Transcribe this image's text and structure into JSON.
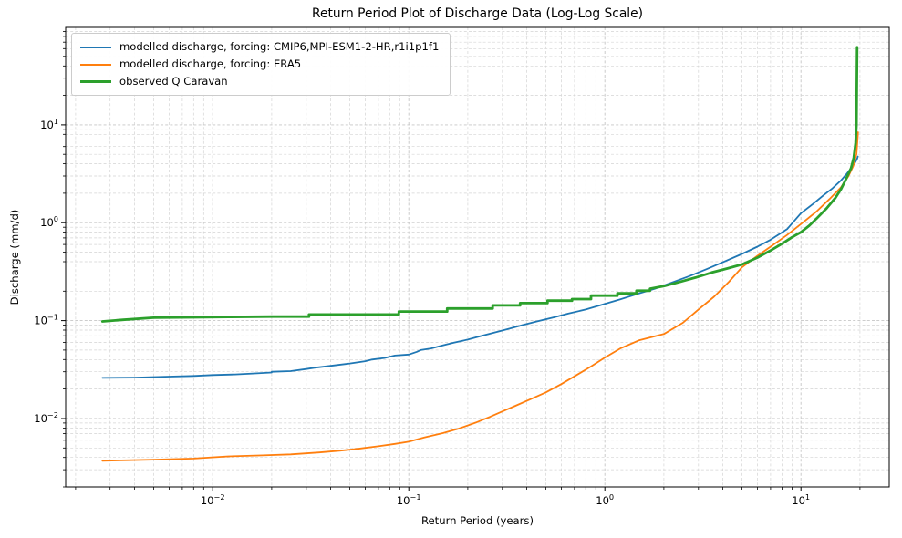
{
  "chart_data": {
    "type": "line",
    "title": "Return Period Plot of Discharge Data (Log-Log Scale)",
    "xlabel": "Return Period (years)",
    "ylabel": "Discharge (mm/d)",
    "x_scale": "log",
    "y_scale": "log",
    "xlim": [
      0.00178,
      28.2
    ],
    "ylim": [
      0.002,
      99
    ],
    "x_tick_exponents": [
      -2,
      -1,
      0,
      1
    ],
    "y_tick_exponents": [
      -2,
      -1,
      0,
      1
    ],
    "grid": {
      "which": "both",
      "style": "dashed",
      "major_color": "#c6c6c6",
      "minor_color": "#d4d4d4"
    },
    "legend": {
      "position": "upper left",
      "edge_color": "#cccccc"
    },
    "spine_color": "#000000",
    "series": [
      {
        "name": "modelled discharge, forcing: CMIP6,MPI-ESM1-2-HR,r1i1p1f1",
        "color": "#1f77b4",
        "line_width": 1.8,
        "points": [
          [
            0.00274,
            0.026
          ],
          [
            0.004,
            0.0262
          ],
          [
            0.006,
            0.0268
          ],
          [
            0.008,
            0.0272
          ],
          [
            0.01,
            0.0278
          ],
          [
            0.013,
            0.0282
          ],
          [
            0.016,
            0.0288
          ],
          [
            0.02,
            0.0295
          ],
          [
            0.02,
            0.03
          ],
          [
            0.025,
            0.0305
          ],
          [
            0.03,
            0.032
          ],
          [
            0.033,
            0.033
          ],
          [
            0.04,
            0.0345
          ],
          [
            0.05,
            0.0365
          ],
          [
            0.06,
            0.0385
          ],
          [
            0.065,
            0.04
          ],
          [
            0.075,
            0.0415
          ],
          [
            0.085,
            0.044
          ],
          [
            0.1,
            0.045
          ],
          [
            0.11,
            0.048
          ],
          [
            0.115,
            0.05
          ],
          [
            0.13,
            0.052
          ],
          [
            0.15,
            0.056
          ],
          [
            0.17,
            0.0595
          ],
          [
            0.2,
            0.064
          ],
          [
            0.23,
            0.069
          ],
          [
            0.27,
            0.075
          ],
          [
            0.32,
            0.082
          ],
          [
            0.38,
            0.09
          ],
          [
            0.45,
            0.098
          ],
          [
            0.55,
            0.108
          ],
          [
            0.65,
            0.118
          ],
          [
            0.8,
            0.13
          ],
          [
            1.0,
            0.148
          ],
          [
            1.2,
            0.165
          ],
          [
            1.5,
            0.19
          ],
          [
            1.8,
            0.212
          ],
          [
            2.2,
            0.245
          ],
          [
            2.7,
            0.285
          ],
          [
            3.3,
            0.335
          ],
          [
            4.0,
            0.395
          ],
          [
            5.0,
            0.48
          ],
          [
            6.0,
            0.57
          ],
          [
            7.0,
            0.67
          ],
          [
            8.5,
            0.86
          ],
          [
            10.0,
            1.25
          ],
          [
            11.5,
            1.55
          ],
          [
            13.0,
            1.9
          ],
          [
            14.5,
            2.25
          ],
          [
            16.0,
            2.7
          ],
          [
            17.0,
            3.1
          ],
          [
            18.0,
            3.6
          ],
          [
            18.8,
            4.05
          ],
          [
            19.3,
            4.45
          ],
          [
            19.5,
            4.75
          ]
        ]
      },
      {
        "name": "modelled discharge, forcing: ERA5",
        "color": "#ff7f0e",
        "line_width": 1.8,
        "points": [
          [
            0.00274,
            0.0037
          ],
          [
            0.005,
            0.0038
          ],
          [
            0.008,
            0.0039
          ],
          [
            0.012,
            0.0041
          ],
          [
            0.018,
            0.0042
          ],
          [
            0.025,
            0.0043
          ],
          [
            0.035,
            0.0045
          ],
          [
            0.045,
            0.0047
          ],
          [
            0.055,
            0.0049
          ],
          [
            0.07,
            0.0052
          ],
          [
            0.085,
            0.0055
          ],
          [
            0.1,
            0.0058
          ],
          [
            0.12,
            0.0064
          ],
          [
            0.15,
            0.0071
          ],
          [
            0.18,
            0.0079
          ],
          [
            0.22,
            0.0091
          ],
          [
            0.26,
            0.0104
          ],
          [
            0.3,
            0.0118
          ],
          [
            0.35,
            0.0135
          ],
          [
            0.42,
            0.0158
          ],
          [
            0.5,
            0.0185
          ],
          [
            0.6,
            0.0225
          ],
          [
            0.7,
            0.027
          ],
          [
            0.85,
            0.034
          ],
          [
            1.0,
            0.042
          ],
          [
            1.2,
            0.052
          ],
          [
            1.5,
            0.063
          ],
          [
            2.0,
            0.073
          ],
          [
            2.5,
            0.095
          ],
          [
            3.0,
            0.13
          ],
          [
            3.6,
            0.175
          ],
          [
            4.3,
            0.25
          ],
          [
            5.0,
            0.35
          ],
          [
            6.0,
            0.46
          ],
          [
            7.0,
            0.57
          ],
          [
            8.5,
            0.75
          ],
          [
            10.0,
            0.97
          ],
          [
            12.0,
            1.3
          ],
          [
            14.0,
            1.75
          ],
          [
            16.0,
            2.3
          ],
          [
            17.5,
            3.0
          ],
          [
            18.5,
            3.8
          ],
          [
            19.2,
            5.0
          ],
          [
            19.55,
            8.4
          ]
        ]
      },
      {
        "name": "observed Q Caravan",
        "color": "#2ca02c",
        "line_width": 2.8,
        "points": [
          [
            0.00274,
            0.098
          ],
          [
            0.0035,
            0.102
          ],
          [
            0.005,
            0.107
          ],
          [
            0.008,
            0.108
          ],
          [
            0.012,
            0.109
          ],
          [
            0.02,
            0.11
          ],
          [
            0.031,
            0.11
          ],
          [
            0.031,
            0.1155
          ],
          [
            0.089,
            0.1155
          ],
          [
            0.089,
            0.124
          ],
          [
            0.157,
            0.124
          ],
          [
            0.157,
            0.133
          ],
          [
            0.268,
            0.133
          ],
          [
            0.268,
            0.143
          ],
          [
            0.37,
            0.143
          ],
          [
            0.37,
            0.151
          ],
          [
            0.51,
            0.151
          ],
          [
            0.51,
            0.16
          ],
          [
            0.68,
            0.16
          ],
          [
            0.68,
            0.166
          ],
          [
            0.85,
            0.166
          ],
          [
            0.85,
            0.18
          ],
          [
            1.16,
            0.18
          ],
          [
            1.16,
            0.19
          ],
          [
            1.45,
            0.19
          ],
          [
            1.45,
            0.202
          ],
          [
            1.7,
            0.202
          ],
          [
            1.7,
            0.212
          ],
          [
            2.0,
            0.225
          ],
          [
            2.4,
            0.248
          ],
          [
            2.9,
            0.275
          ],
          [
            3.5,
            0.31
          ],
          [
            4.2,
            0.34
          ],
          [
            5.0,
            0.375
          ],
          [
            6.0,
            0.44
          ],
          [
            7.0,
            0.52
          ],
          [
            8.0,
            0.61
          ],
          [
            9.0,
            0.71
          ],
          [
            10.0,
            0.8
          ],
          [
            11.0,
            0.93
          ],
          [
            12.0,
            1.1
          ],
          [
            13.5,
            1.4
          ],
          [
            15.0,
            1.8
          ],
          [
            16.0,
            2.2
          ],
          [
            17.0,
            2.8
          ],
          [
            18.0,
            3.6
          ],
          [
            18.6,
            4.6
          ],
          [
            19.0,
            6.5
          ],
          [
            19.2,
            10.0
          ],
          [
            19.35,
            62.0
          ]
        ]
      }
    ]
  }
}
